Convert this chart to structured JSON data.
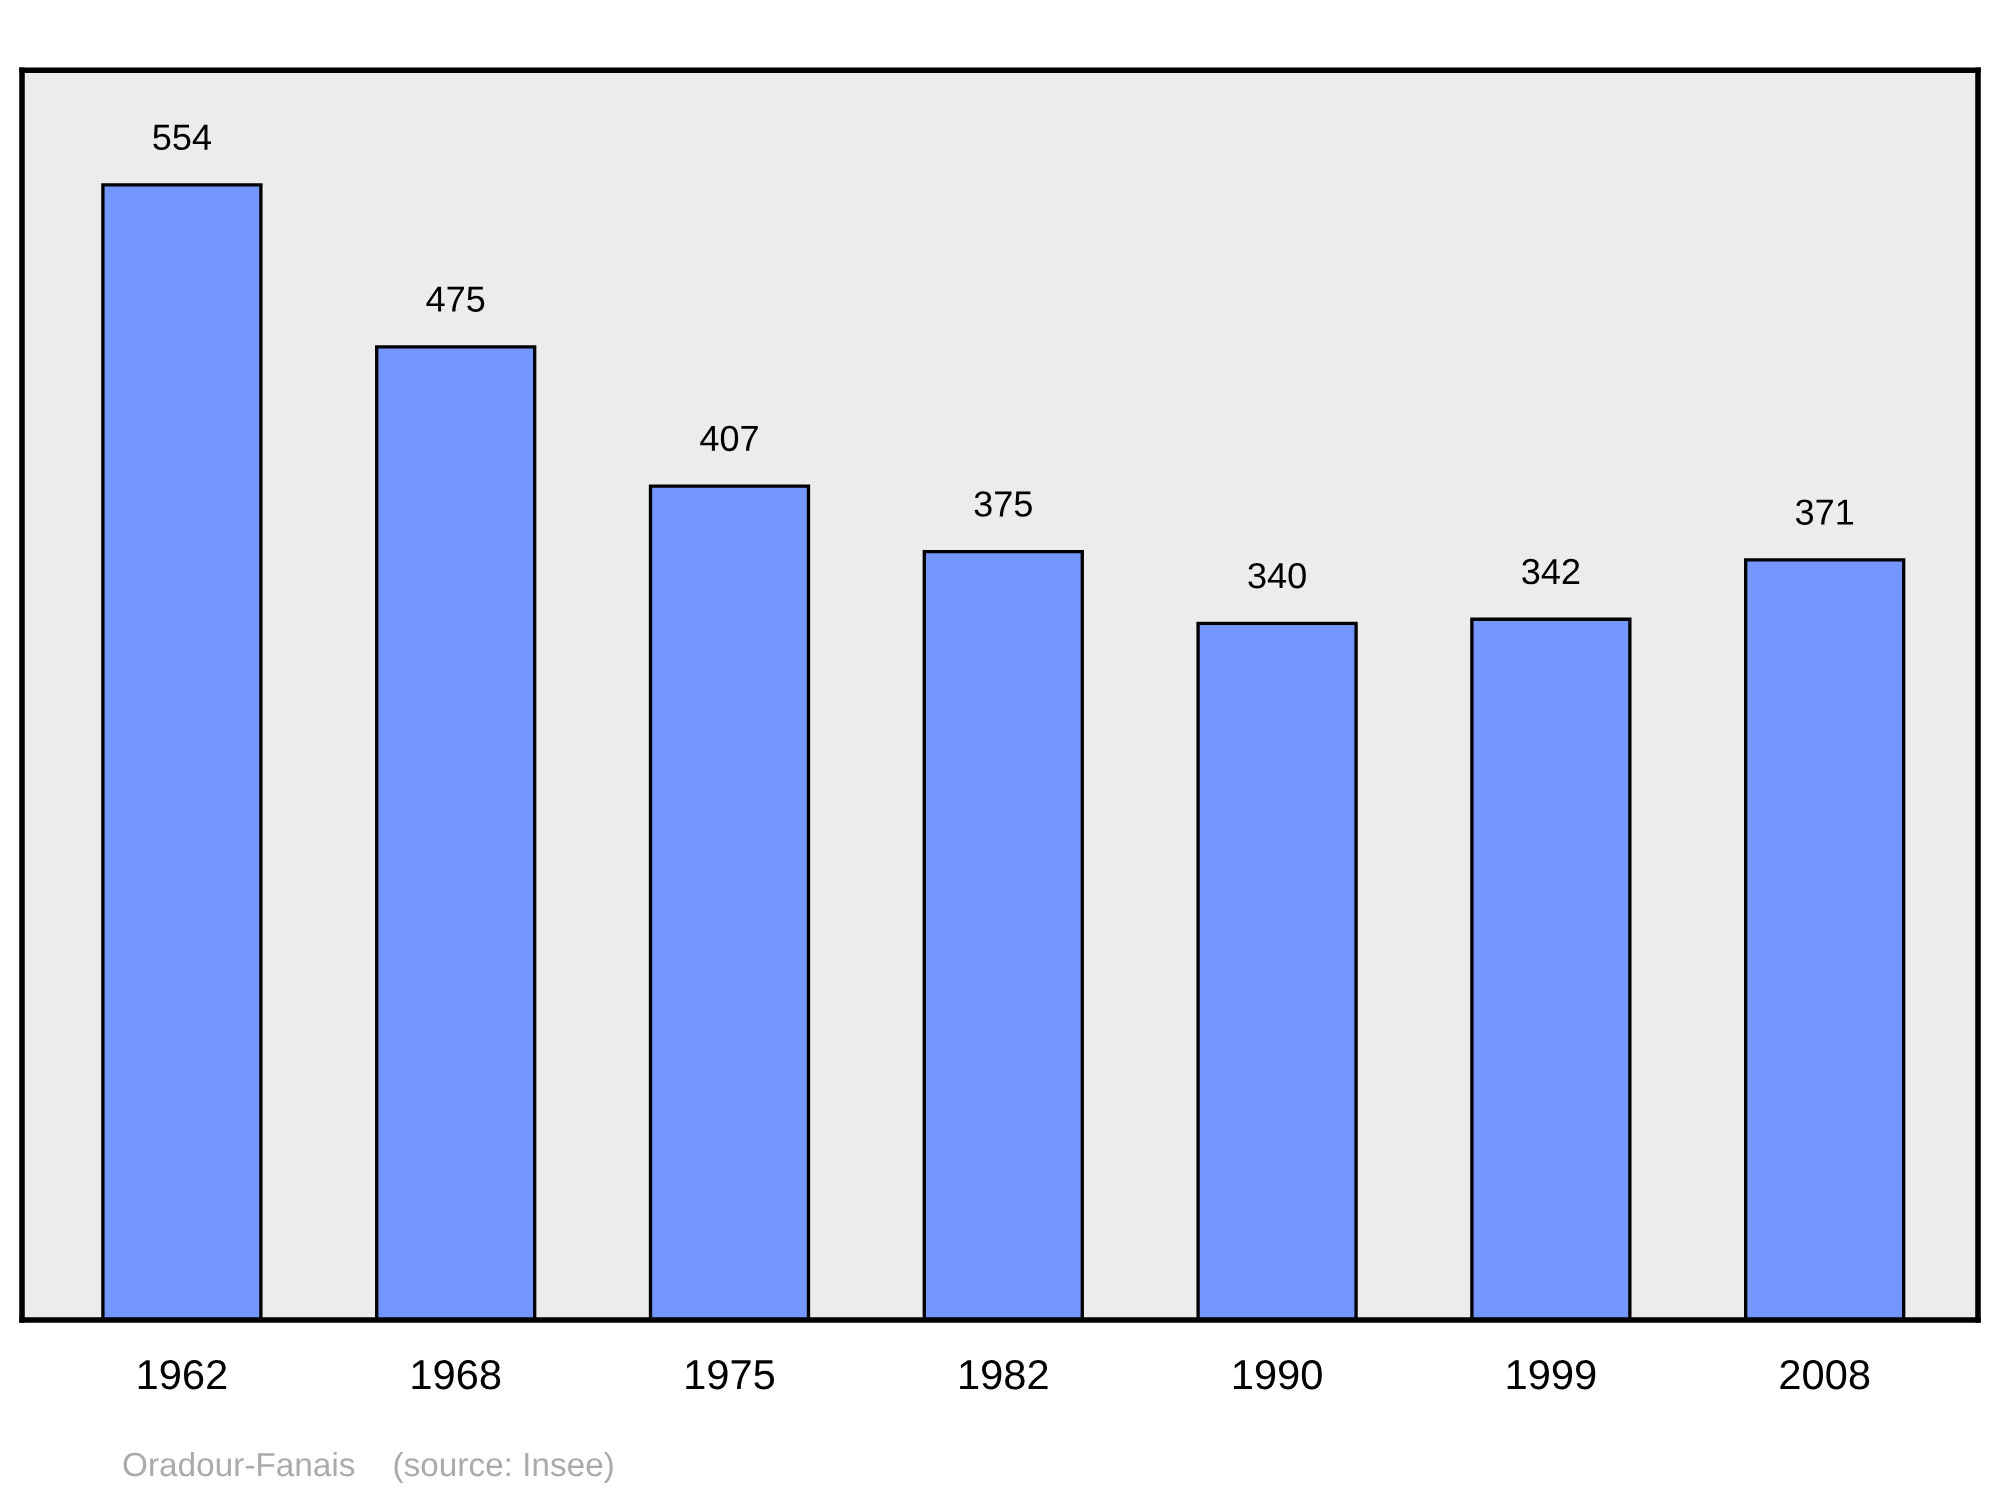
{
  "chart_data": {
    "type": "bar",
    "categories": [
      "1962",
      "1968",
      "1975",
      "1982",
      "1990",
      "1999",
      "2008"
    ],
    "values": [
      554,
      475,
      407,
      375,
      340,
      342,
      371
    ],
    "color": "#7397ff",
    "ylim": [
      0,
      610
    ],
    "data_labels": true,
    "tick_labels": "x",
    "grid": false,
    "annotations": [
      "Oradour-Fanais    (source: Insee)"
    ]
  }
}
